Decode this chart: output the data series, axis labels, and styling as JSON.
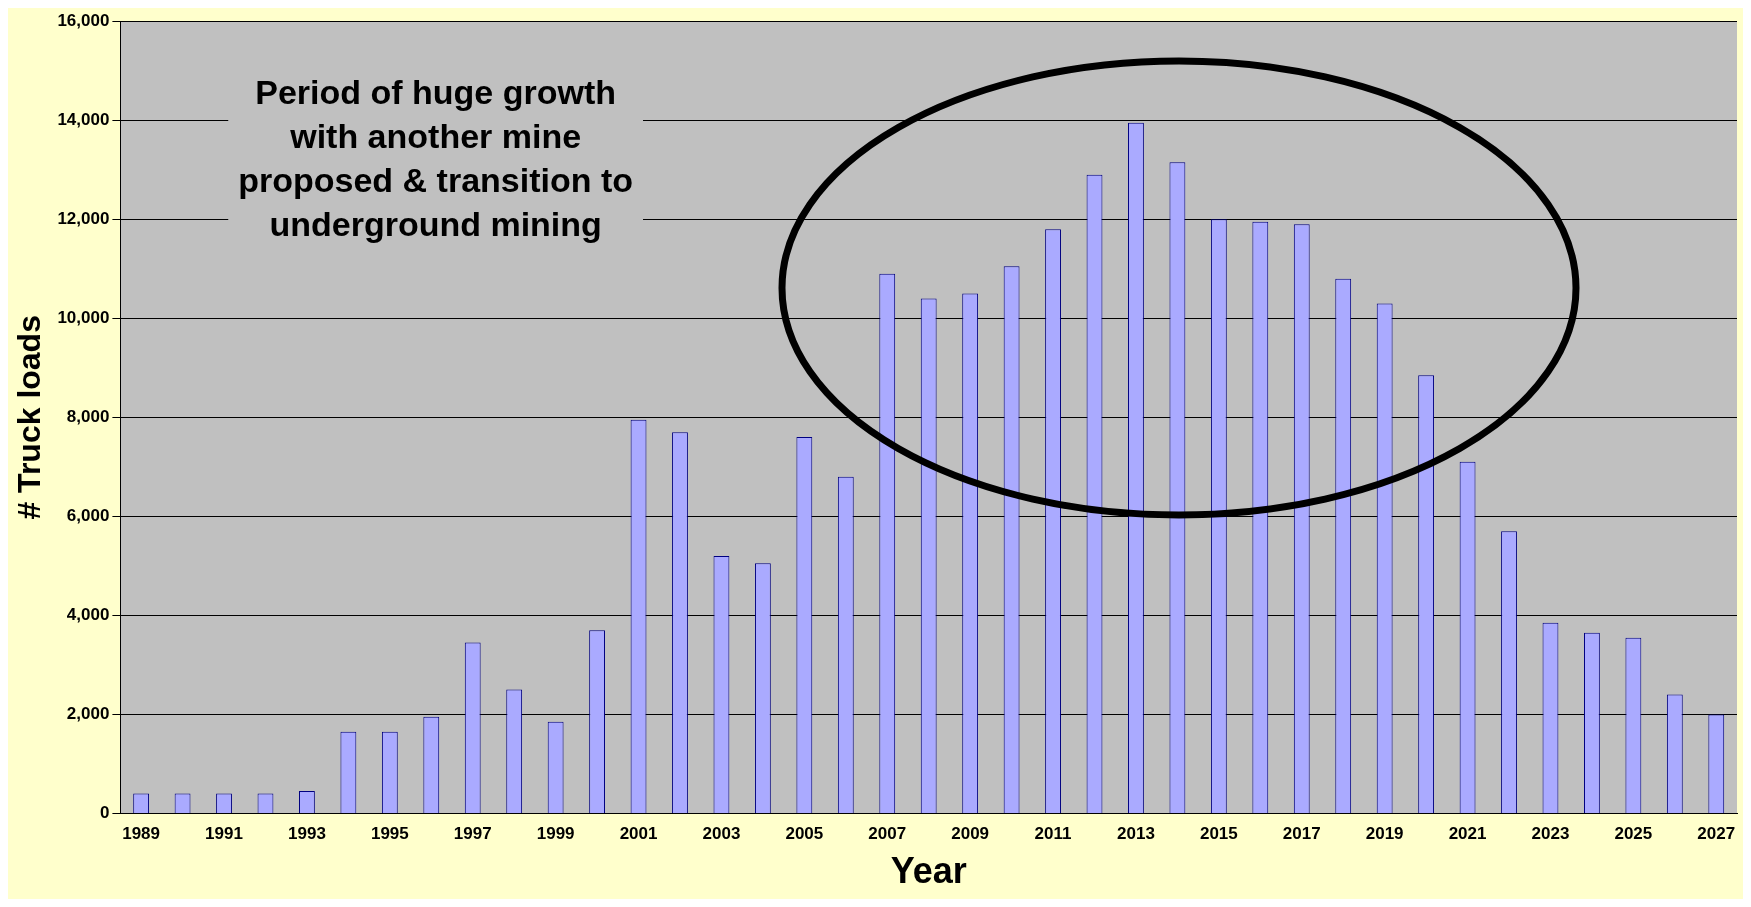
{
  "chart_data": {
    "type": "bar",
    "xlabel": "Year",
    "ylabel": "# Truck loads",
    "categories": [
      "1989",
      null,
      "1991",
      null,
      "1993",
      null,
      "1995",
      null,
      "1997",
      null,
      "1999",
      null,
      "2001",
      null,
      "2003",
      null,
      "2005",
      null,
      "2007",
      null,
      "2009",
      null,
      "2011",
      null,
      "2013",
      null,
      "2015",
      null,
      "2017",
      null,
      "2019",
      null,
      "2021",
      null,
      "2023",
      null,
      "2025",
      null,
      "2027"
    ],
    "values": [
      400,
      400,
      400,
      400,
      450,
      1650,
      1650,
      1950,
      3450,
      2500,
      1850,
      3700,
      7950,
      7700,
      5200,
      5050,
      7600,
      6800,
      10900,
      10400,
      10500,
      11050,
      11800,
      12900,
      13950,
      13150,
      12000,
      11950,
      11900,
      10800,
      10300,
      8850,
      7100,
      5700,
      3850,
      3650,
      3550,
      2400,
      2000
    ],
    "color": "#aaaaff",
    "ylim": [
      0,
      16000
    ],
    "yticks": [
      {
        "value": 0,
        "label": "0"
      },
      {
        "value": 2000,
        "label": "2,000"
      },
      {
        "value": 4000,
        "label": "4,000"
      },
      {
        "value": 6000,
        "label": "6,000"
      },
      {
        "value": 8000,
        "label": "8,000"
      },
      {
        "value": 10000,
        "label": "10,000"
      },
      {
        "value": 12000,
        "label": "12,000"
      },
      {
        "value": 14000,
        "label": "14,000"
      },
      {
        "value": 16000,
        "label": "16,000"
      }
    ],
    "grid": "y",
    "legend": false,
    "annotations": [
      "Period of huge growth\nwith another mine\nproposed & transition to\nunderground mining"
    ]
  }
}
